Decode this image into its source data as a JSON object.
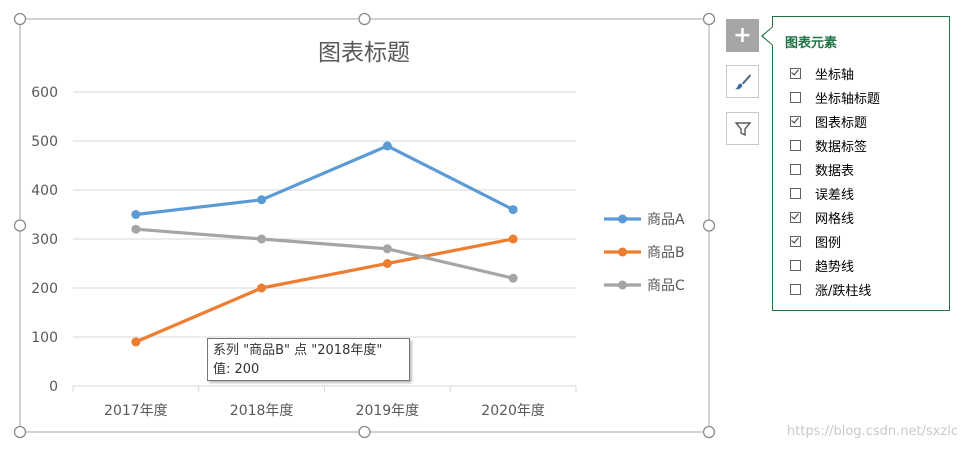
{
  "chart_data": {
    "type": "line",
    "title": "图表标题",
    "categories": [
      "2017年度",
      "2018年度",
      "2019年度",
      "2020年度"
    ],
    "series": [
      {
        "name": "商品A",
        "color": "#5b9bd5",
        "values": [
          350,
          380,
          490,
          360
        ]
      },
      {
        "name": "商品B",
        "color": "#ed7d31",
        "values": [
          90,
          200,
          250,
          300
        ]
      },
      {
        "name": "商品C",
        "color": "#a5a5a5",
        "values": [
          320,
          300,
          280,
          220
        ]
      }
    ],
    "y_ticks": [
      0,
      100,
      200,
      300,
      400,
      500,
      600
    ],
    "ylim": [
      0,
      600
    ],
    "grid": true,
    "legend_position": "right"
  },
  "tooltip": {
    "line1": "系列 \"商品B\" 点 \"2018年度\"",
    "line2": "值: 200"
  },
  "side_buttons": {
    "add_icon": "plus-icon",
    "style_icon": "brush-icon",
    "filter_icon": "filter-icon"
  },
  "elements_panel": {
    "title": "图表元素",
    "items": [
      {
        "label": "坐标轴",
        "checked": true
      },
      {
        "label": "坐标轴标题",
        "checked": false
      },
      {
        "label": "图表标题",
        "checked": true
      },
      {
        "label": "数据标签",
        "checked": false
      },
      {
        "label": "数据表",
        "checked": false
      },
      {
        "label": "误差线",
        "checked": false
      },
      {
        "label": "网格线",
        "checked": true
      },
      {
        "label": "图例",
        "checked": true
      },
      {
        "label": "趋势线",
        "checked": false
      },
      {
        "label": "涨/跌柱线",
        "checked": false
      }
    ]
  },
  "watermark": "https://blog.csdn.net/sxzlc"
}
